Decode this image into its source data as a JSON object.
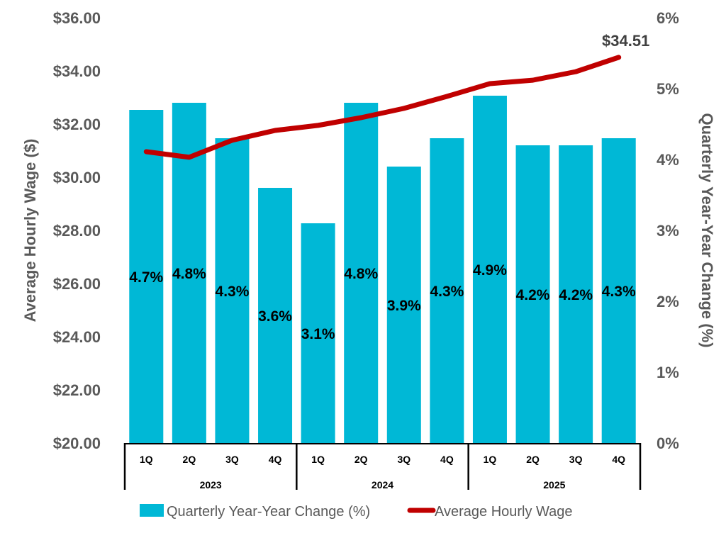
{
  "chart_data": {
    "type": "bar+line",
    "title": "",
    "categories": [
      "1Q",
      "2Q",
      "3Q",
      "4Q",
      "1Q",
      "2Q",
      "3Q",
      "4Q",
      "1Q",
      "2Q",
      "3Q",
      "4Q"
    ],
    "groups": [
      {
        "label": "2023",
        "size": 4
      },
      {
        "label": "2024",
        "size": 4
      },
      {
        "label": "2025",
        "size": 4
      }
    ],
    "series": [
      {
        "name": "Quarterly Year-Year Change (%)",
        "type": "bar",
        "axis": "right",
        "color": "#00B8D6",
        "values": [
          4.7,
          4.8,
          4.3,
          3.6,
          3.1,
          4.8,
          3.9,
          4.3,
          4.9,
          4.2,
          4.2,
          4.3
        ],
        "labels": [
          "4.7%",
          "4.8%",
          "4.3%",
          "3.6%",
          "3.1%",
          "4.8%",
          "3.9%",
          "4.3%",
          "4.9%",
          "4.2%",
          "4.2%",
          "4.3%"
        ]
      },
      {
        "name": "Average Hourly Wage",
        "type": "line",
        "axis": "left",
        "color": "#C00000",
        "values": [
          30.96,
          30.75,
          31.39,
          31.76,
          31.95,
          32.24,
          32.59,
          33.04,
          33.52,
          33.65,
          33.97,
          34.51
        ],
        "end_label": "$34.51"
      }
    ],
    "ylabel": "Average Hourly Wage ($)",
    "ylim": [
      20,
      36
    ],
    "yticks": [
      "$20.00",
      "$22.00",
      "$24.00",
      "$26.00",
      "$28.00",
      "$30.00",
      "$32.00",
      "$34.00",
      "$36.00"
    ],
    "y2label": "Quarterly Year-Year Change (%)",
    "y2lim": [
      0,
      6
    ],
    "y2ticks": [
      "0%",
      "1%",
      "2%",
      "3%",
      "4%",
      "5%",
      "6%"
    ],
    "grid": false,
    "legend": "bottom"
  }
}
